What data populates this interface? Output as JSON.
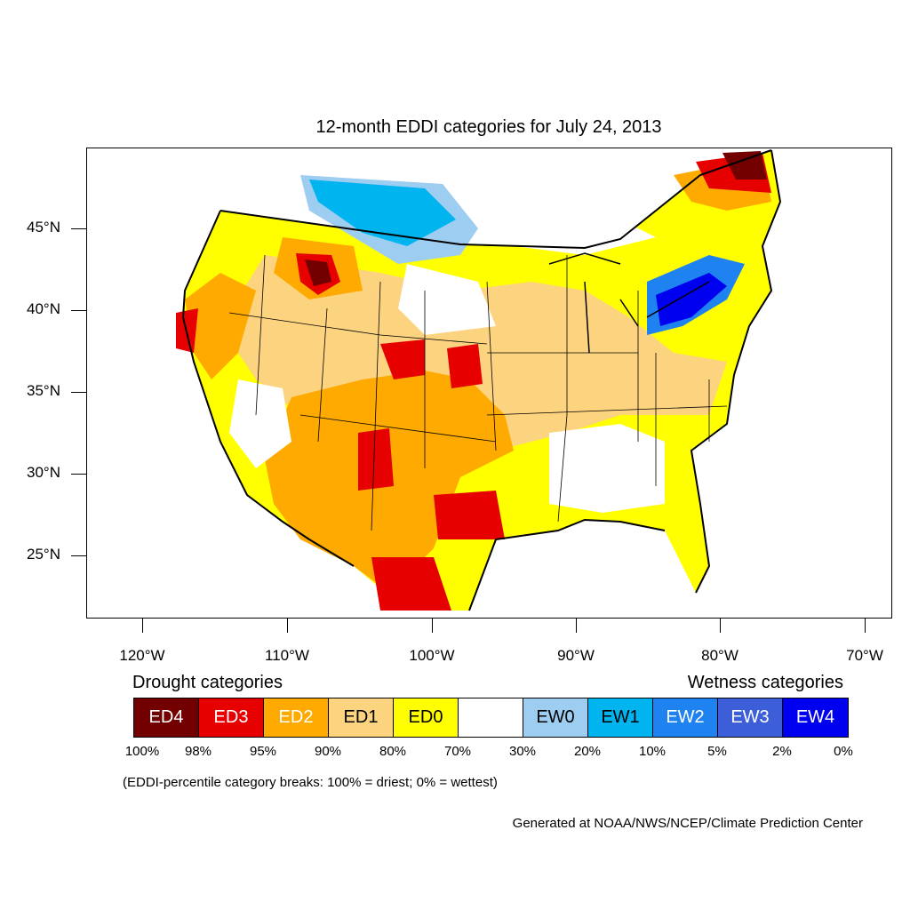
{
  "title": "12-month EDDI categories for July 24, 2013",
  "axes": {
    "lat_labels": [
      "45°N",
      "40°N",
      "35°N",
      "30°N",
      "25°N"
    ],
    "lon_labels": [
      "120°W",
      "110°W",
      "100°W",
      "90°W",
      "80°W",
      "70°W"
    ]
  },
  "legend": {
    "drought_heading": "Drought categories",
    "wetness_heading": "Wetness categories",
    "categories": [
      {
        "label": "ED4",
        "color": "#730000",
        "text_color": "#ffffff"
      },
      {
        "label": "ED3",
        "color": "#e60000",
        "text_color": "#ffffff"
      },
      {
        "label": "ED2",
        "color": "#ffaa00",
        "text_color": "#ffffff"
      },
      {
        "label": "ED1",
        "color": "#fcd37f",
        "text_color": "#000000"
      },
      {
        "label": "ED0",
        "color": "#ffff00",
        "text_color": "#000000"
      },
      {
        "label": "",
        "color": "#ffffff",
        "text_color": "#000000"
      },
      {
        "label": "EW0",
        "color": "#9dcdf0",
        "text_color": "#000000"
      },
      {
        "label": "EW1",
        "color": "#00b4f0",
        "text_color": "#000000"
      },
      {
        "label": "EW2",
        "color": "#1e82f0",
        "text_color": "#ffffff"
      },
      {
        "label": "EW3",
        "color": "#3c5ed8",
        "text_color": "#ffffff"
      },
      {
        "label": "EW4",
        "color": "#0000f0",
        "text_color": "#ffffff"
      }
    ],
    "breaks": [
      "100%",
      "98%",
      "95%",
      "90%",
      "80%",
      "70%",
      "30%",
      "20%",
      "10%",
      "5%",
      "2%",
      "0%"
    ]
  },
  "note": "(EDDI-percentile category breaks: 100% = driest; 0% = wettest)",
  "credit": "Generated at NOAA/NWS/NCEP/Climate Prediction Center"
}
